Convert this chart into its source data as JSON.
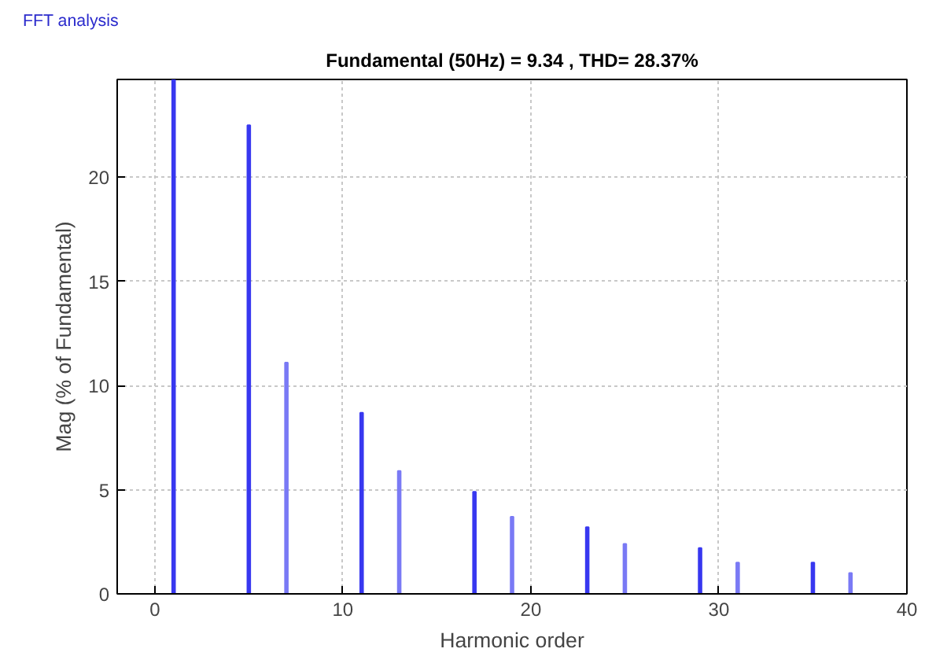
{
  "chart_data": {
    "type": "bar",
    "title": "FFT analysis",
    "subtitle": "Fundamental (50Hz) = 9.34 , THD= 28.37%",
    "xlabel": "Harmonic order",
    "ylabel": "Mag (% of Fundamental)",
    "x": [
      1,
      5,
      7,
      11,
      13,
      17,
      19,
      23,
      25,
      29,
      31,
      35,
      37
    ],
    "values": [
      24.7,
      22.5,
      11.1,
      8.7,
      5.9,
      4.9,
      3.7,
      3.2,
      2.4,
      2.2,
      1.5,
      1.5,
      1.0
    ],
    "colors": [
      "#3838f0",
      "#3838f0",
      "#7a7af5",
      "#3838f0",
      "#7a7af5",
      "#3838f0",
      "#7a7af5",
      "#3838f0",
      "#7a7af5",
      "#3838f0",
      "#7a7af5",
      "#3838f0",
      "#7a7af5"
    ],
    "xlim": [
      -2,
      40
    ],
    "ylim": [
      0,
      24.7
    ],
    "xticks": [
      0,
      10,
      20,
      30,
      40
    ],
    "yticks": [
      0,
      5,
      10,
      15,
      20
    ],
    "grid": true
  }
}
